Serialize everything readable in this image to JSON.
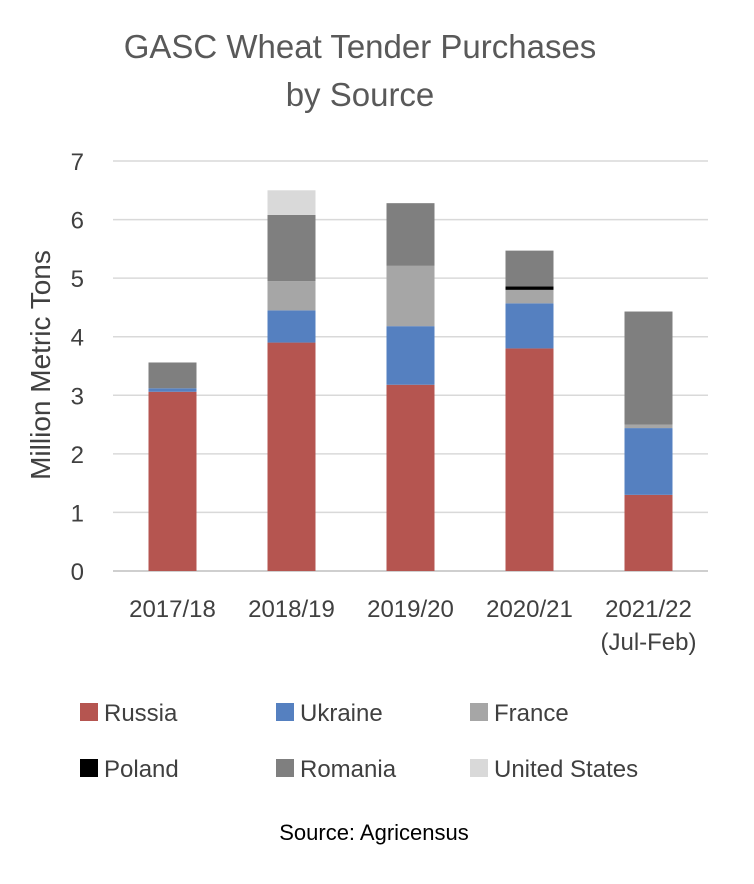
{
  "chart_data": {
    "type": "bar",
    "stacked": true,
    "title": "GASC Wheat Tender Purchases\nby Source",
    "xlabel": "",
    "ylabel": "Million Metric Tons",
    "ylim": [
      0,
      7
    ],
    "yticks": [
      0,
      1,
      2,
      3,
      4,
      5,
      6,
      7
    ],
    "grid": true,
    "legend_position": "bottom",
    "categories": [
      "2017/18",
      "2018/19",
      "2019/20",
      "2020/21",
      "2021/22\n(Jul-Feb)"
    ],
    "series": [
      {
        "name": "Russia",
        "color": "#b55550",
        "values": [
          3.06,
          3.9,
          3.18,
          3.8,
          1.3
        ]
      },
      {
        "name": "Ukraine",
        "color": "#5580c0",
        "values": [
          0.06,
          0.55,
          1.0,
          0.77,
          1.14
        ]
      },
      {
        "name": "France",
        "color": "#a6a6a6",
        "values": [
          0.0,
          0.5,
          1.03,
          0.23,
          0.06
        ]
      },
      {
        "name": "Poland",
        "color": "#000000",
        "values": [
          0.0,
          0.0,
          0.0,
          0.06,
          0.0
        ]
      },
      {
        "name": "Romania",
        "color": "#7f7f7f",
        "values": [
          0.44,
          1.13,
          1.07,
          0.61,
          1.93
        ]
      },
      {
        "name": "United States",
        "color": "#d9d9d9",
        "values": [
          0.0,
          0.42,
          0.0,
          0.0,
          0.0
        ]
      }
    ],
    "source": "Source: Agricensus"
  }
}
